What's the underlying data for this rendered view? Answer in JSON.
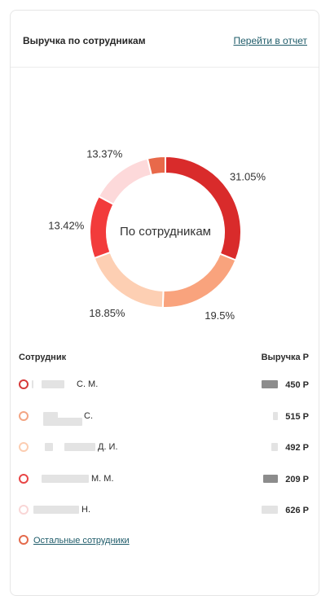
{
  "header": {
    "title": "Выручка по сотрудникам",
    "report_link": "Перейти в отчет"
  },
  "chart_data": {
    "type": "pie",
    "center_label": "По сотрудникам",
    "slices": [
      {
        "value": 31.05,
        "label": "31.05%",
        "color": "#d92b2b"
      },
      {
        "value": 19.5,
        "label": "19.5%",
        "color": "#f9a37d"
      },
      {
        "value": 18.85,
        "label": "18.85%",
        "color": "#fdcfb3"
      },
      {
        "value": 13.42,
        "label": "13.42%",
        "color": "#f23b3b"
      },
      {
        "value": 13.37,
        "label": "13.37%",
        "color": "#fdd9da"
      },
      {
        "value": 3.81,
        "label": "",
        "color": "#e8694a"
      }
    ]
  },
  "table": {
    "col_employee": "Сотрудник",
    "col_revenue": "Выручка Р",
    "rows": [
      {
        "name": "С. М.",
        "revenue": "450 Р",
        "color": "#d63a3a"
      },
      {
        "name": "С.",
        "revenue": "515 Р",
        "color": "#f3a583"
      },
      {
        "name": "Д. И.",
        "revenue": "492 Р",
        "color": "#fccdb1"
      },
      {
        "name": "М. М.",
        "revenue": "209 Р",
        "color": "#e84545"
      },
      {
        "name": "Н.",
        "revenue": "626 Р",
        "color": "#f9d6d6"
      }
    ],
    "others": {
      "label": "Остальные сотрудники",
      "color": "#e46a4b"
    }
  }
}
